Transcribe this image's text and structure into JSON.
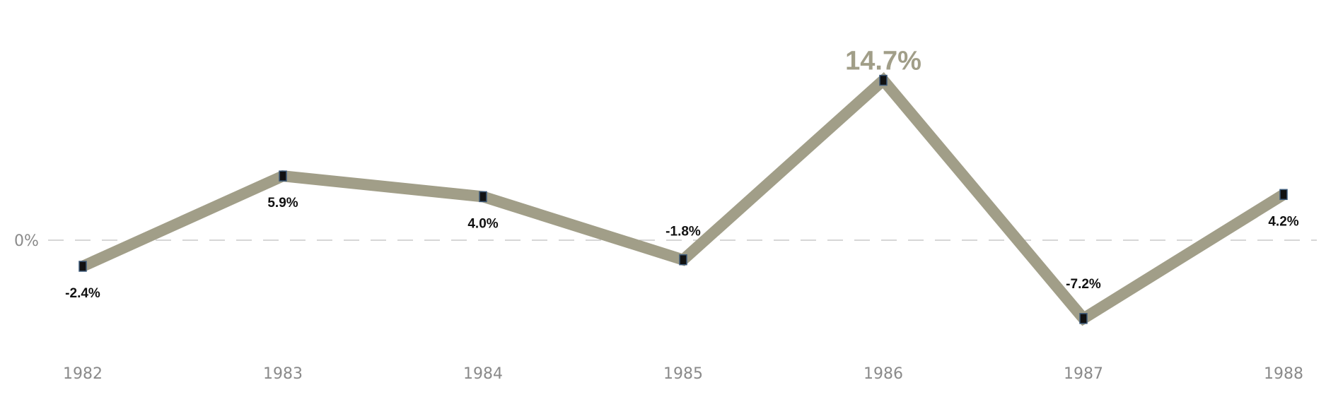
{
  "chart_data": {
    "type": "line",
    "categories": [
      "1982",
      "1983",
      "1984",
      "1985",
      "1986",
      "1987",
      "1988"
    ],
    "values": [
      -2.4,
      5.9,
      4.0,
      -1.8,
      14.7,
      -7.2,
      4.2
    ],
    "value_labels": [
      "-2.4%",
      "5.9%",
      "4.0%",
      "-1.8%",
      "14.7%",
      "-7.2%",
      "4.2%"
    ],
    "highlight_index": 4,
    "reference_line": {
      "value": 0,
      "label": "0%",
      "style": "dashed"
    },
    "ylim": [
      -9,
      16
    ],
    "title": "",
    "xlabel": "",
    "ylabel": "",
    "grid": false,
    "legend": "none",
    "colors": {
      "line": "#a19e88",
      "marker": "#111111",
      "marker_edge": "#3d5a7a",
      "reference_line": "#c8c8c8",
      "axis_text": "#8a8a8a",
      "label_text": "#111111",
      "highlight_text": "#a19e88"
    }
  }
}
